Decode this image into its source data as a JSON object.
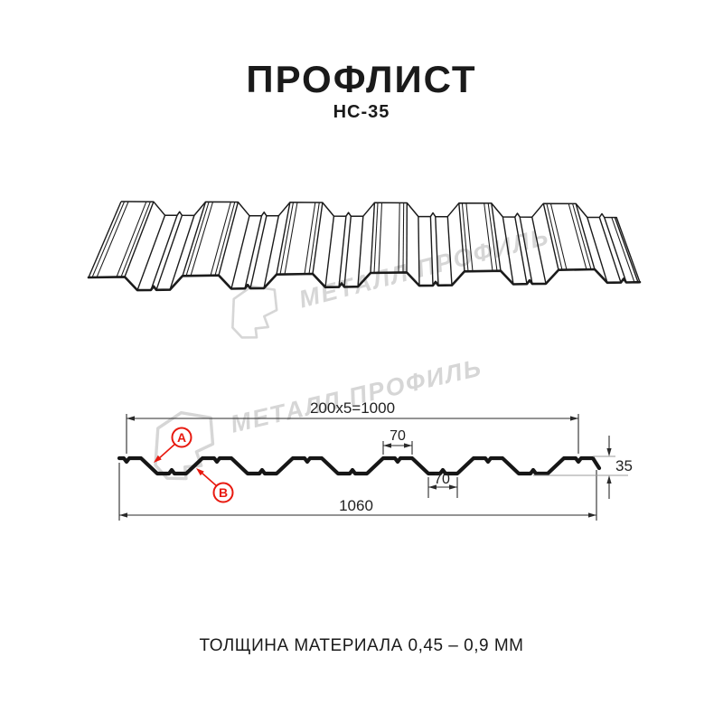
{
  "title": "ПРОФЛИСТ",
  "subtitle": "НС-35",
  "watermark": {
    "text": "МЕТАЛЛ ПРОФИЛЬ"
  },
  "cross_section": {
    "dim_top_span": "200x5=1000",
    "dim_top_flange": "70",
    "dim_bottom_flange": "70",
    "dim_height": "35",
    "dim_overall_width": "1060",
    "label_a": "A",
    "label_b": "B"
  },
  "footer": "ТОЛЩИНА МАТЕРИАЛА 0,45 – 0,9 ММ",
  "colors": {
    "ink": "#1A1A1A",
    "accent_red": "#E8190F",
    "watermark_gray": "#D6D6D6"
  }
}
